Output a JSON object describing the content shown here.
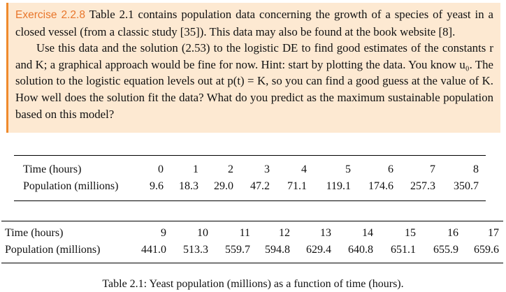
{
  "exercise": {
    "heading": "Exercise 2.2.8",
    "paragraph1": "Table 2.1 contains population data concerning the growth of a species of yeast in a closed vessel (from a classic study [35]). This data may also be found at the book website [8].",
    "paragraph2": "Use this data and the solution (2.53) to the logistic DE to find good estimates of the constants r and K; a graphical approach would be fine for now. Hint: start by plotting the data. You know u₀. The solution to the logistic equation levels out at p(t) = K, so you can find a good guess at the value of K. How well does the solution fit the data? What do you predict as the maximum sustainable population based on this model?"
  },
  "table1": {
    "row_labels": [
      "Time (hours)",
      "Population (millions)"
    ],
    "time": [
      "0",
      "1",
      "2",
      "3",
      "4",
      "5",
      "6",
      "7",
      "8"
    ],
    "population": [
      "9.6",
      "18.3",
      "29.0",
      "47.2",
      "71.1",
      "119.1",
      "174.6",
      "257.3",
      "350.7"
    ]
  },
  "table2": {
    "row_labels": [
      "Time (hours)",
      "Population (millions)"
    ],
    "time": [
      "9",
      "10",
      "11",
      "12",
      "13",
      "14",
      "15",
      "16",
      "17"
    ],
    "population": [
      "441.0",
      "513.3",
      "559.7",
      "594.8",
      "629.4",
      "640.8",
      "651.1",
      "655.9",
      "659.6"
    ]
  },
  "caption": "Table 2.1: Yeast population (millions) as a function of time (hours).",
  "colors": {
    "box_bg": "#fde9d2",
    "box_border": "#ef8a2c",
    "heading": "#e8762b"
  }
}
